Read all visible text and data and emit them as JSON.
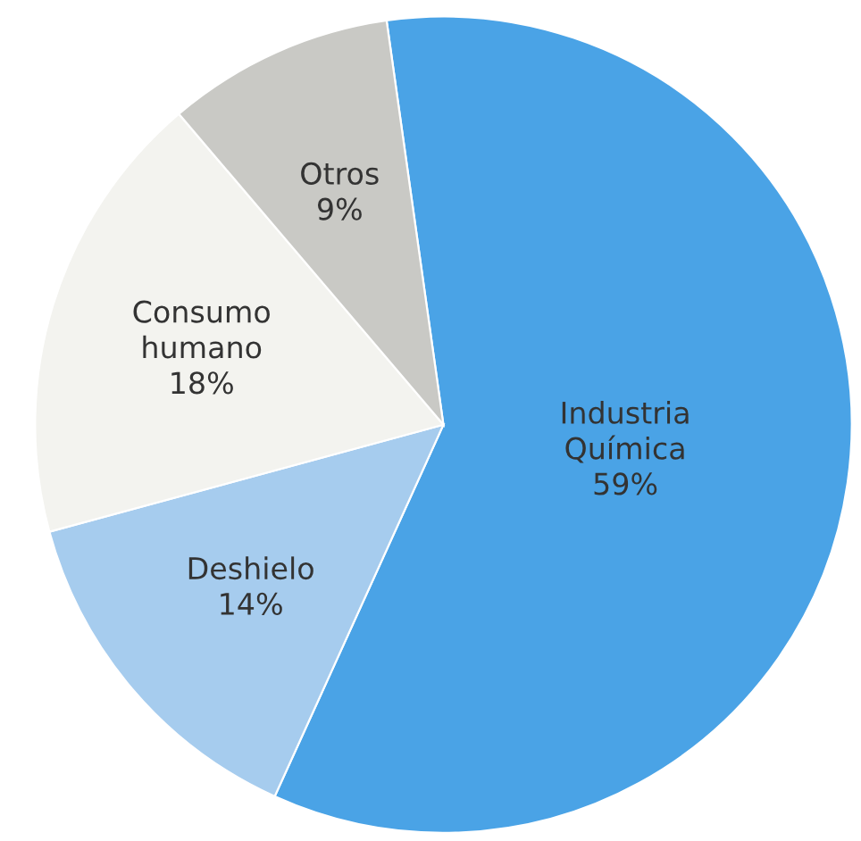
{
  "chart_data": {
    "type": "pie",
    "categories": [
      "Industria Química",
      "Deshielo",
      "Consumo humano",
      "Otros"
    ],
    "values": [
      59,
      14,
      18,
      9
    ],
    "colors": [
      "#4aa3e6",
      "#a6ccee",
      "#f3f3ef",
      "#c9c9c5"
    ],
    "value_labels": [
      "59%",
      "14%",
      "18%",
      "9%"
    ],
    "legend": false
  }
}
